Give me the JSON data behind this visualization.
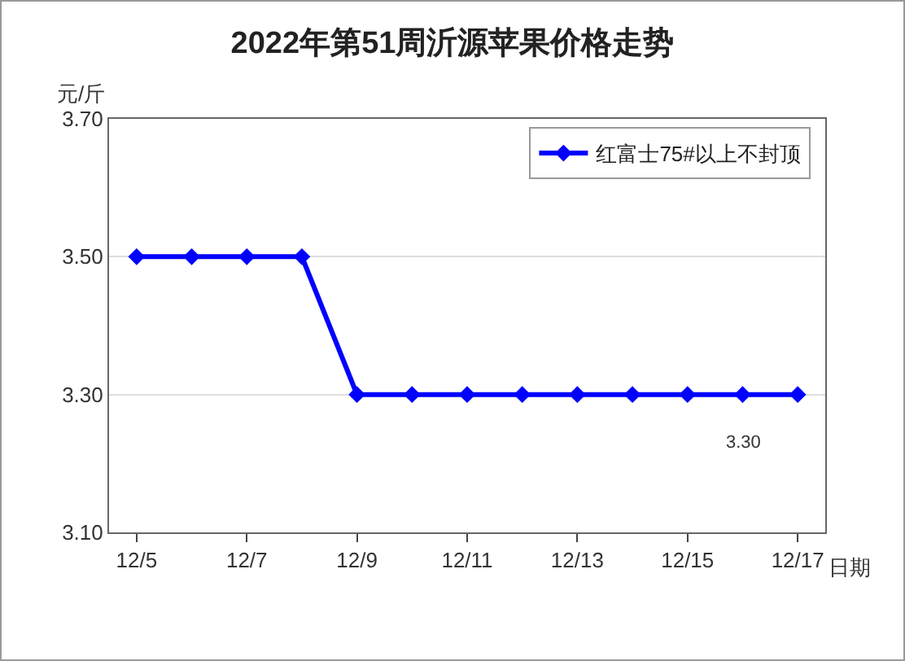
{
  "chart_data": {
    "type": "line",
    "title": "2022年第51周沂源苹果价格走势",
    "ylabel": "元/斤",
    "xlabel": "日期",
    "categories": [
      "12/5",
      null,
      "12/7",
      null,
      "12/9",
      null,
      "12/11",
      null,
      "12/13",
      null,
      "12/15",
      null,
      "12/17"
    ],
    "series": [
      {
        "name": "红富士75#以上不封顶",
        "color": "#0000ff",
        "values": [
          3.5,
          3.5,
          3.5,
          3.5,
          3.3,
          3.3,
          3.3,
          3.3,
          3.3,
          3.3,
          3.3,
          3.3,
          3.3
        ],
        "value_labels": [
          null,
          null,
          null,
          null,
          null,
          null,
          null,
          null,
          null,
          null,
          null,
          "3.30",
          null
        ]
      }
    ],
    "ylim": [
      3.1,
      3.7
    ],
    "yticks": [
      {
        "value": 3.1,
        "label": "3.10"
      },
      {
        "value": 3.3,
        "label": "3.30"
      },
      {
        "value": 3.5,
        "label": "3.50"
      },
      {
        "value": 3.7,
        "label": "3.70"
      }
    ],
    "grid": "y",
    "legend": "top right",
    "marker": "diamond",
    "line_style": "solid"
  }
}
